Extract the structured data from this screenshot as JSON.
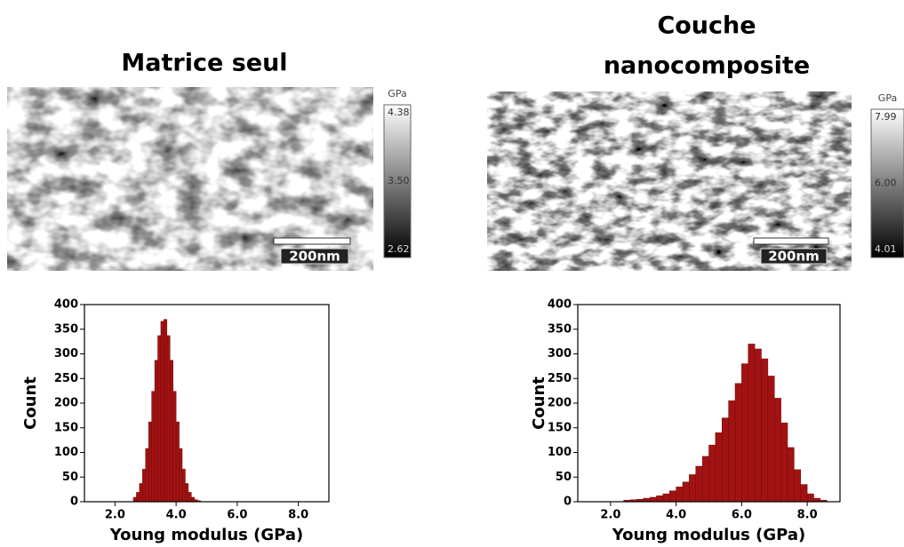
{
  "panels": [
    {
      "title_lines": [
        "Matrice seul"
      ],
      "image": {
        "colorbar_unit": "GPa",
        "clim": [
          2.62,
          4.38
        ],
        "colorbar_ticks": [
          4.38,
          {
            "value": 3.5,
            "label": "3.50"
          },
          2.62
        ],
        "scale_bar": "200nm"
      }
    },
    {
      "title_lines": [
        "Couche",
        "nanocomposite"
      ],
      "image": {
        "colorbar_unit": "GPa",
        "clim": [
          4.01,
          7.99
        ],
        "colorbar_ticks": [
          7.99,
          {
            "value": 6.0,
            "label": "6.00"
          },
          4.01
        ],
        "scale_bar": "200nm"
      }
    }
  ],
  "chart_data": [
    {
      "type": "histogram",
      "x_label": "Young modulus (GPa)",
      "y_label": "Count",
      "color": "#a31212",
      "bins": [
        2.6,
        2.7,
        2.8,
        2.9,
        3.0,
        3.1,
        3.2,
        3.3,
        3.4,
        3.5,
        3.6,
        3.7,
        3.8,
        3.9,
        4.0,
        4.1,
        4.2,
        4.3,
        4.4,
        4.5,
        4.6,
        4.7,
        4.8
      ],
      "values": [
        9,
        19,
        37,
        66,
        108,
        162,
        224,
        287,
        337,
        366,
        370,
        337,
        287,
        224,
        162,
        108,
        66,
        37,
        19,
        9,
        4,
        2
      ],
      "xlim": [
        1.0,
        9.0
      ],
      "xticks": [
        {
          "value": 2,
          "label": "2.0"
        },
        {
          "value": 4,
          "label": "4.0"
        },
        {
          "value": 6,
          "label": "6.0"
        },
        {
          "value": 8,
          "label": "8.0"
        }
      ],
      "ylim": [
        0,
        400
      ],
      "yticks": [
        0,
        50,
        100,
        150,
        200,
        250,
        300,
        350,
        400
      ]
    },
    {
      "type": "histogram",
      "x_label": "Young modulus (GPa)",
      "y_label": "Count",
      "color": "#a31212",
      "bins": [
        2.4,
        2.6,
        2.8,
        3.0,
        3.2,
        3.4,
        3.6,
        3.8,
        4.0,
        4.2,
        4.4,
        4.6,
        4.8,
        5.0,
        5.2,
        5.4,
        5.6,
        5.8,
        6.0,
        6.2,
        6.4,
        6.6,
        6.8,
        7.0,
        7.2,
        7.4,
        7.6,
        7.8,
        8.0,
        8.2,
        8.4,
        8.6
      ],
      "values": [
        3,
        4,
        5,
        7,
        9,
        12,
        16,
        22,
        30,
        40,
        55,
        72,
        92,
        115,
        140,
        170,
        205,
        240,
        280,
        320,
        310,
        290,
        255,
        210,
        160,
        110,
        65,
        35,
        16,
        7,
        3
      ],
      "xlim": [
        1.0,
        9.0
      ],
      "xticks": [
        {
          "value": 2,
          "label": "2.0"
        },
        {
          "value": 4,
          "label": "4.0"
        },
        {
          "value": 6,
          "label": "6.0"
        },
        {
          "value": 8,
          "label": "8.0"
        }
      ],
      "ylim": [
        0,
        400
      ],
      "yticks": [
        0,
        50,
        100,
        150,
        200,
        250,
        300,
        350,
        400
      ]
    }
  ]
}
